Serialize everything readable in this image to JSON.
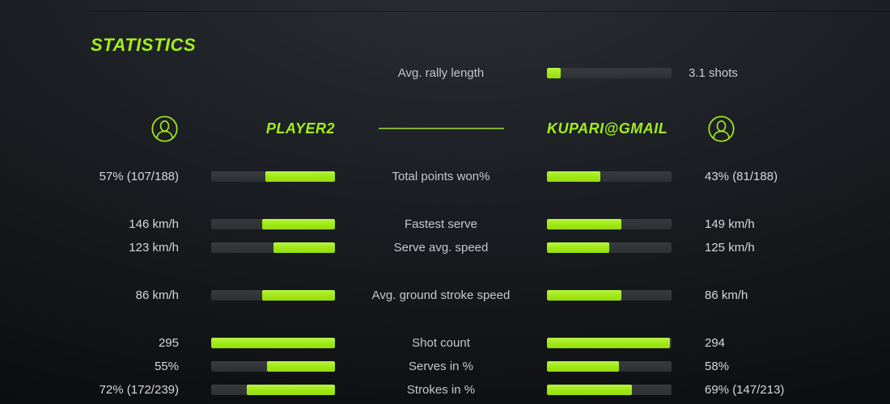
{
  "title": "STATISTICS",
  "colors": {
    "accent": "#a3ee19",
    "bar_fill": "#a0e713",
    "bar_track": "#33363a",
    "label_text": "#c5c9cc",
    "value_text": "#d5d8da",
    "header_line": "#7fb135",
    "background": "#1e2126"
  },
  "avg_rally": {
    "label": "Avg. rally length",
    "value": "3.1 shots",
    "fill_pct": 11
  },
  "players": {
    "left": "PLAYER2",
    "right": "KUPARI@GMAIL"
  },
  "rows": [
    {
      "label": "Total points won%",
      "left_value": "57% (107/188)",
      "right_value": "43% (81/188)",
      "left_pct": 56,
      "right_pct": 43
    },
    {
      "label": "Fastest serve",
      "left_value": "146 km/h",
      "right_value": "149 km/h",
      "left_pct": 59,
      "right_pct": 60
    },
    {
      "label": "Serve avg. speed",
      "left_value": "123 km/h",
      "right_value": "125 km/h",
      "left_pct": 50,
      "right_pct": 50
    },
    {
      "label": "Avg. ground stroke speed",
      "left_value": "86 km/h",
      "right_value": "86 km/h",
      "left_pct": 59,
      "right_pct": 60
    },
    {
      "label": "Shot count",
      "left_value": "295",
      "right_value": "294",
      "left_pct": 100,
      "right_pct": 99
    },
    {
      "label": "Serves in %",
      "left_value": "55%",
      "right_value": "58%",
      "left_pct": 55,
      "right_pct": 58
    },
    {
      "label": "Strokes in %",
      "left_value": "72% (172/239)",
      "right_value": "69% (147/213)",
      "left_pct": 71,
      "right_pct": 68
    }
  ]
}
